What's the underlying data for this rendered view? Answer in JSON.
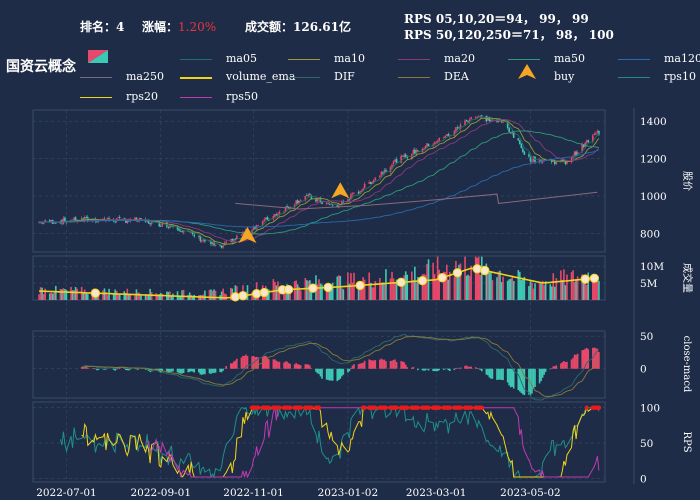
{
  "header": {
    "rank_label": "排名：",
    "rank_value": "4",
    "change_label": "涨幅：",
    "change_value": "1.20%",
    "volume_label": "成交额：",
    "volume_value": "126.61亿",
    "rps_line1": "RPS 05,10,20＝94，  99，  99",
    "rps_line2": "RPS 50,120,250＝71，  98，  100"
  },
  "title": "国资云概念",
  "legend": [
    {
      "label": "ma05",
      "color": "#1f6f6a"
    },
    {
      "label": "ma10",
      "color": "#9a9a3a"
    },
    {
      "label": "ma20",
      "color": "#8a3a7a"
    },
    {
      "label": "ma50",
      "color": "#2e9a7a"
    },
    {
      "label": "ma120",
      "color": "#2a6ab0"
    },
    {
      "label": "ma250",
      "color": "#7a6a7a"
    },
    {
      "label": "volume_ema",
      "color": "#f2d31b"
    },
    {
      "label": "DIF",
      "color": "#2e6a6a"
    },
    {
      "label": "DEA",
      "color": "#8a7a3a"
    },
    {
      "label": "buy",
      "color": "#f5a623"
    },
    {
      "label": "rps10",
      "color": "#1f8f8a"
    },
    {
      "label": "rps20",
      "color": "#f2d31b"
    },
    {
      "label": "rps50",
      "color": "#c03ab0"
    }
  ],
  "colors": {
    "up": "#e8486a",
    "down": "#3ec9b4",
    "background": "#1e2c47",
    "grid": "#3a4a66"
  },
  "chart_data": [
    {
      "type": "candlestick",
      "ylabel": "股价",
      "yticks": [
        800,
        1000,
        1200,
        1400
      ],
      "ylim": [
        700,
        1460
      ],
      "x_tick_labels": [
        "2022-07-01",
        "2022-09-01",
        "2022-11-01",
        "2023-01-02",
        "2023-03-01",
        "2023-05-02"
      ],
      "close_anchors": [
        {
          "date": "2022-06-15",
          "value": 860
        },
        {
          "date": "2022-07-15",
          "value": 875
        },
        {
          "date": "2022-08-15",
          "value": 870
        },
        {
          "date": "2022-09-10",
          "value": 840
        },
        {
          "date": "2022-10-10",
          "value": 720
        },
        {
          "date": "2022-10-25",
          "value": 800
        },
        {
          "date": "2022-11-15",
          "value": 900
        },
        {
          "date": "2022-12-05",
          "value": 1000
        },
        {
          "date": "2022-12-25",
          "value": 940
        },
        {
          "date": "2023-01-10",
          "value": 1030
        },
        {
          "date": "2023-02-01",
          "value": 1180
        },
        {
          "date": "2023-03-10",
          "value": 1330
        },
        {
          "date": "2023-03-25",
          "value": 1430
        },
        {
          "date": "2023-04-15",
          "value": 1390
        },
        {
          "date": "2023-05-01",
          "value": 1200
        },
        {
          "date": "2023-05-25",
          "value": 1180
        },
        {
          "date": "2023-06-15",
          "value": 1340
        }
      ],
      "ma250_anchors": [
        {
          "date": "2022-10-20",
          "value": 960
        },
        {
          "date": "2022-12-01",
          "value": 930
        },
        {
          "date": "2023-01-15",
          "value": 950
        },
        {
          "date": "2023-03-01",
          "value": 980
        },
        {
          "date": "2023-04-10",
          "value": 1010
        },
        {
          "date": "2023-04-11",
          "value": 960
        },
        {
          "date": "2023-06-15",
          "value": 1020
        }
      ],
      "buy_signals": [
        {
          "date": "2022-10-28",
          "value": 780
        },
        {
          "date": "2022-12-28",
          "value": 1020
        }
      ]
    },
    {
      "type": "bar",
      "ylabel": "成交量",
      "yticks": [
        "5M",
        "10M"
      ],
      "ylim": [
        0,
        13
      ],
      "volume_anchors_millions": [
        {
          "date": "2022-06-15",
          "value": 3
        },
        {
          "date": "2022-08-01",
          "value": 2.5
        },
        {
          "date": "2022-10-01",
          "value": 2
        },
        {
          "date": "2022-11-15",
          "value": 4.5
        },
        {
          "date": "2023-01-15",
          "value": 6
        },
        {
          "date": "2023-02-20",
          "value": 8
        },
        {
          "date": "2023-03-25",
          "value": 11
        },
        {
          "date": "2023-05-01",
          "value": 5
        },
        {
          "date": "2023-06-15",
          "value": 7.5
        }
      ],
      "ema_anchors_millions": [
        {
          "date": "2022-06-15",
          "value": 2.6
        },
        {
          "date": "2022-10-15",
          "value": 0.6
        },
        {
          "date": "2022-11-20",
          "value": 3.0
        },
        {
          "date": "2023-01-01",
          "value": 4.0
        },
        {
          "date": "2023-03-01",
          "value": 6.0
        },
        {
          "date": "2023-03-25",
          "value": 9.5
        },
        {
          "date": "2023-05-10",
          "value": 5.0
        },
        {
          "date": "2023-06-15",
          "value": 6.5
        }
      ]
    },
    {
      "type": "line",
      "ylabel": "close-macd",
      "yticks": [
        0,
        50
      ],
      "ylim": [
        -45,
        58
      ]
    },
    {
      "type": "line",
      "ylabel": "RPS",
      "yticks": [
        0,
        50,
        100
      ],
      "ylim": [
        -5,
        108
      ],
      "high_rps_marker_color": "#e81c1c"
    }
  ]
}
